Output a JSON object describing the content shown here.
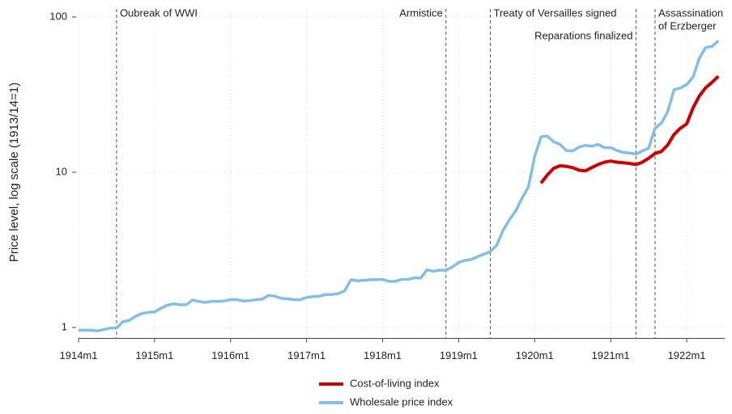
{
  "chart_data": {
    "type": "line",
    "y_label": "Price level, log scale (1913/14=1)",
    "log_y": true,
    "grid": true,
    "x": [
      "1914m1",
      "1914m2",
      "1914m3",
      "1914m4",
      "1914m5",
      "1914m6",
      "1914m7",
      "1914m8",
      "1914m9",
      "1914m10",
      "1914m11",
      "1914m12",
      "1915m1",
      "1915m2",
      "1915m3",
      "1915m4",
      "1915m5",
      "1915m6",
      "1915m7",
      "1915m8",
      "1915m9",
      "1915m10",
      "1915m11",
      "1915m12",
      "1916m1",
      "1916m2",
      "1916m3",
      "1916m4",
      "1916m5",
      "1916m6",
      "1916m7",
      "1916m8",
      "1916m9",
      "1916m10",
      "1916m11",
      "1916m12",
      "1917m1",
      "1917m2",
      "1917m3",
      "1917m4",
      "1917m5",
      "1917m6",
      "1917m7",
      "1917m8",
      "1917m9",
      "1917m10",
      "1917m11",
      "1917m12",
      "1918m1",
      "1918m2",
      "1918m3",
      "1918m4",
      "1918m5",
      "1918m6",
      "1918m7",
      "1918m8",
      "1918m9",
      "1918m10",
      "1918m11",
      "1918m12",
      "1919m1",
      "1919m2",
      "1919m3",
      "1919m4",
      "1919m5",
      "1919m6",
      "1919m7",
      "1919m8",
      "1919m9",
      "1919m10",
      "1919m11",
      "1919m12",
      "1920m1",
      "1920m2",
      "1920m3",
      "1920m4",
      "1920m5",
      "1920m6",
      "1920m7",
      "1920m8",
      "1920m9",
      "1920m10",
      "1920m11",
      "1920m12",
      "1921m1",
      "1921m2",
      "1921m3",
      "1921m4",
      "1921m5",
      "1921m6",
      "1921m7",
      "1921m8",
      "1921m9",
      "1921m10",
      "1921m11",
      "1921m12",
      "1922m1",
      "1922m2",
      "1922m3",
      "1922m4",
      "1922m5",
      "1922m6"
    ],
    "series": [
      {
        "name": "Cost-of-living index",
        "color": "#cc0000",
        "values": [
          null,
          null,
          null,
          null,
          null,
          null,
          null,
          null,
          null,
          null,
          null,
          null,
          null,
          null,
          null,
          null,
          null,
          null,
          null,
          null,
          null,
          null,
          null,
          null,
          null,
          null,
          null,
          null,
          null,
          null,
          null,
          null,
          null,
          null,
          null,
          null,
          null,
          null,
          null,
          null,
          null,
          null,
          null,
          null,
          null,
          null,
          null,
          null,
          null,
          null,
          null,
          null,
          null,
          null,
          null,
          null,
          null,
          null,
          null,
          null,
          null,
          null,
          null,
          null,
          null,
          null,
          null,
          null,
          null,
          null,
          null,
          null,
          null,
          8.5,
          9.6,
          10.6,
          11.0,
          10.9,
          10.7,
          10.3,
          10.2,
          10.7,
          11.2,
          11.6,
          11.8,
          11.6,
          11.5,
          11.4,
          11.2,
          11.6,
          12.3,
          13.2,
          13.6,
          15.0,
          17.5,
          19.2,
          20.5,
          26,
          31,
          35,
          38,
          41.5
        ]
      },
      {
        "name": "Wholesale price index",
        "color": "#85bde6",
        "values": [
          0.96,
          0.96,
          0.96,
          0.95,
          0.97,
          0.99,
          0.99,
          1.09,
          1.11,
          1.18,
          1.23,
          1.25,
          1.26,
          1.33,
          1.39,
          1.42,
          1.4,
          1.4,
          1.5,
          1.47,
          1.45,
          1.47,
          1.47,
          1.48,
          1.51,
          1.51,
          1.48,
          1.49,
          1.51,
          1.52,
          1.61,
          1.59,
          1.54,
          1.53,
          1.51,
          1.51,
          1.56,
          1.58,
          1.59,
          1.63,
          1.63,
          1.65,
          1.72,
          2.03,
          2.0,
          2.01,
          2.03,
          2.03,
          2.04,
          1.98,
          1.98,
          2.04,
          2.04,
          2.09,
          2.08,
          2.35,
          2.3,
          2.34,
          2.34,
          2.45,
          2.62,
          2.7,
          2.74,
          2.86,
          2.97,
          3.08,
          3.39,
          4.22,
          4.93,
          5.62,
          6.79,
          8.03,
          12.6,
          16.9,
          17.1,
          15.7,
          15.1,
          13.8,
          13.7,
          14.5,
          14.9,
          14.7,
          15.1,
          14.4,
          14.4,
          13.8,
          13.4,
          13.3,
          13.1,
          13.7,
          14.3,
          19.2,
          20.7,
          24.6,
          34.0,
          34.9,
          36.7,
          41.0,
          54.3,
          63.6,
          64.6,
          70.3
        ]
      }
    ],
    "xlim": [
      "1914m1",
      "1922m7"
    ],
    "xticks": [
      "1914m1",
      "1915m1",
      "1916m1",
      "1917m1",
      "1918m1",
      "1919m1",
      "1920m1",
      "1921m1",
      "1922m1"
    ],
    "ylim": [
      0.85,
      100
    ],
    "yticks": [
      1,
      10,
      100
    ],
    "events": [
      {
        "x": "1914m7",
        "label": [
          "Oubreak of WWI"
        ]
      },
      {
        "x": "1918m11",
        "label": [
          "Armistice"
        ]
      },
      {
        "x": "1919m6",
        "label": [
          "Treaty of Versailles signed"
        ]
      },
      {
        "x": "1921m5",
        "label": [
          "Reparations finalized"
        ]
      },
      {
        "x": "1921m8",
        "label": [
          "Assassination",
          "of Erzberger"
        ]
      }
    ]
  }
}
